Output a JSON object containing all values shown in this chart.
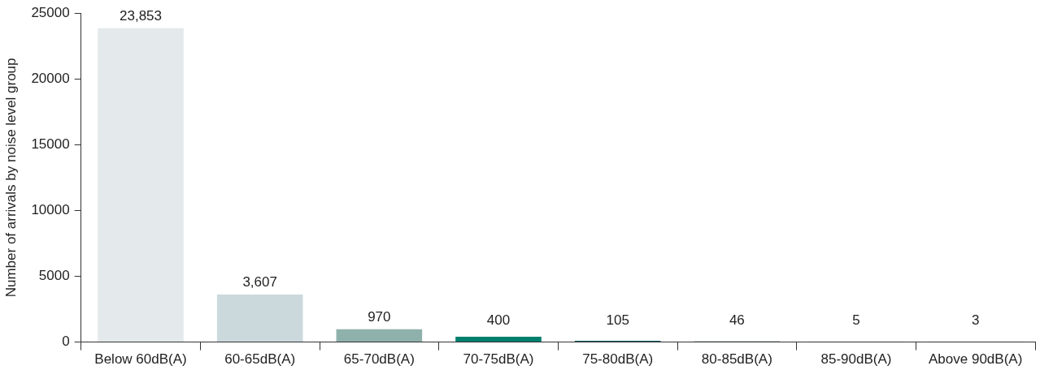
{
  "chart_data": {
    "type": "bar",
    "ylabel": "Number of arrivals by noise level group",
    "categories": [
      "Below 60dB(A)",
      "60-65dB(A)",
      "65-70dB(A)",
      "70-75dB(A)",
      "75-80dB(A)",
      "80-85dB(A)",
      "85-90dB(A)",
      "Above 90dB(A)"
    ],
    "values": [
      23853,
      3607,
      970,
      400,
      105,
      46,
      5,
      3
    ],
    "value_labels": [
      "23,853",
      "3,607",
      "970",
      "400",
      "105",
      "46",
      "5",
      "3"
    ],
    "colors": [
      "#e4e9eb",
      "#cbd9dd",
      "#8fb1ab",
      "#007f6e",
      "#0b5a5f",
      "#1f3a3d",
      "#222222",
      "#222222"
    ],
    "ylim": [
      0,
      25000
    ],
    "yticks": [
      0,
      5000,
      10000,
      15000,
      20000,
      25000
    ],
    "grid": false,
    "legend": false
  }
}
